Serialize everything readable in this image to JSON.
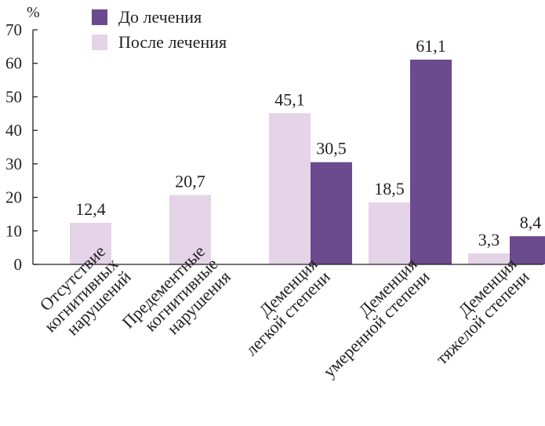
{
  "chart_data": {
    "type": "bar",
    "unit_label": "%",
    "ylim": [
      0,
      70
    ],
    "yticks": [
      0,
      10,
      20,
      30,
      40,
      50,
      60,
      70
    ],
    "grid": false,
    "legend_position": "top-center",
    "categories": [
      [
        "Отсутствие",
        "когнитивных",
        "нарушений"
      ],
      [
        "Предементные",
        "когнитивные",
        "нарушения"
      ],
      [
        "Деменция",
        "легкой степени"
      ],
      [
        "Деменция",
        "умеренной степени"
      ],
      [
        "Деменция",
        "тяжелой степени"
      ]
    ],
    "series": [
      {
        "name": "После лечения",
        "color": "#e5d3e7",
        "values": [
          12.4,
          20.7,
          45.1,
          18.5,
          3.3
        ],
        "labels": [
          "12,4",
          "20,7",
          "45,1",
          "18,5",
          "3,3"
        ]
      },
      {
        "name": "До лечения",
        "color": "#6b4a8e",
        "values": [
          null,
          null,
          30.5,
          61.1,
          8.4
        ],
        "labels": [
          "",
          "",
          "30,5",
          "61,1",
          "8,4"
        ]
      }
    ],
    "legend_order": [
      1,
      0
    ]
  }
}
